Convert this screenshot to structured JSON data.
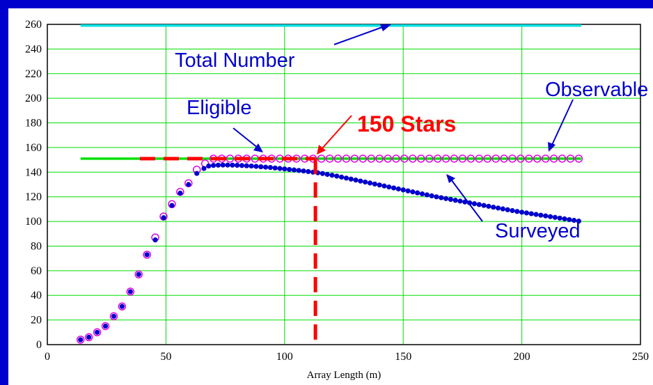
{
  "chart_data": {
    "type": "scatter",
    "xlabel": "Array Length (m)",
    "ylabel": "",
    "xlim": [
      0,
      250
    ],
    "ylim": [
      0,
      260
    ],
    "x_ticks": [
      0,
      50,
      100,
      150,
      200,
      250
    ],
    "y_ticks": [
      0,
      20,
      40,
      60,
      80,
      100,
      120,
      140,
      160,
      180,
      200,
      220,
      240,
      260
    ],
    "grid": true,
    "series": [
      {
        "name": "Total Number",
        "style": "line",
        "color": "#00e0e0",
        "x": [
          14,
          225
        ],
        "y": [
          259,
          259
        ]
      },
      {
        "name": "Eligible",
        "style": "line",
        "color": "#00e000",
        "x": [
          14,
          225
        ],
        "y": [
          151,
          151
        ]
      },
      {
        "name": "Observable",
        "style": "open-circles",
        "color": "#e000e0",
        "x": [
          14,
          17.5,
          21,
          24.5,
          28,
          31.5,
          35,
          38.5,
          42,
          45.5,
          49,
          52.5,
          56,
          59.5,
          63,
          66.5,
          70,
          73.5,
          77,
          80.5,
          84,
          87.5,
          91,
          94.5,
          98,
          101.5,
          105,
          108.5,
          112,
          115.5,
          119,
          122.5,
          126,
          129.5,
          133,
          136.5,
          140,
          143.5,
          147,
          150.5,
          154,
          157.5,
          161,
          164.5,
          168,
          171.5,
          175,
          178.5,
          182,
          185.5,
          189,
          192.5,
          196,
          199.5,
          203,
          206.5,
          210,
          213.5,
          217,
          220.5,
          224
        ],
        "y": [
          4,
          6,
          10,
          15,
          23,
          31,
          43,
          57,
          73,
          87,
          104,
          114,
          124,
          131,
          142,
          147,
          151,
          151,
          151,
          151,
          151,
          151,
          151,
          151,
          151,
          151,
          151,
          151,
          151,
          151,
          151,
          151,
          151,
          151,
          151,
          151,
          151,
          151,
          151,
          151,
          151,
          151,
          151,
          151,
          151,
          151,
          151,
          151,
          151,
          151,
          151,
          151,
          151,
          151,
          151,
          151,
          151,
          151,
          151,
          151,
          151
        ]
      },
      {
        "name": "Surveyed",
        "style": "dots",
        "color": "#0000cc",
        "x": [
          14,
          17.5,
          21,
          24.5,
          28,
          31.5,
          35,
          38.5,
          42,
          45.5,
          49,
          52.5,
          56,
          59.5,
          63,
          66,
          68,
          70,
          72,
          74,
          76,
          78,
          80,
          82,
          84,
          86,
          88,
          90,
          92,
          94,
          96,
          98,
          100,
          102,
          104,
          106,
          108,
          110,
          112,
          114,
          116,
          118,
          120,
          122,
          124,
          126,
          128,
          130,
          132,
          134,
          136,
          138,
          140,
          142,
          144,
          146,
          148,
          150,
          152,
          154,
          156,
          158,
          160,
          162,
          164,
          166,
          168,
          170,
          172,
          174,
          176,
          178,
          180,
          182,
          184,
          186,
          188,
          190,
          192,
          194,
          196,
          198,
          200,
          202,
          204,
          206,
          208,
          210,
          212,
          214,
          216,
          218,
          220,
          222,
          224
        ],
        "y": [
          4,
          6,
          10,
          15,
          23,
          31,
          43,
          57,
          73,
          85,
          103,
          113,
          123,
          130,
          139,
          143,
          145,
          145.5,
          145.7,
          145.8,
          145.8,
          145.7,
          145.6,
          145.4,
          145.2,
          145,
          144.7,
          144.4,
          144.1,
          143.8,
          143.4,
          143,
          142.6,
          142.2,
          141.8,
          141.4,
          141,
          140.5,
          140,
          139.5,
          138.9,
          138.2,
          137.5,
          136.8,
          136,
          135.2,
          134.4,
          133.6,
          132.8,
          132,
          131.2,
          130.4,
          129.6,
          128.8,
          128,
          127.2,
          126.4,
          125.6,
          124.8,
          124,
          123.2,
          122.4,
          121.6,
          120.8,
          120,
          119.3,
          118.6,
          117.9,
          117.2,
          116.5,
          115.8,
          115.1,
          114.4,
          113.7,
          113,
          112.3,
          111.6,
          110.9,
          110.2,
          109.5,
          108.8,
          108.1,
          107.5,
          106.9,
          106.3,
          105.7,
          105.1,
          104.5,
          103.9,
          103.3,
          102.7,
          102.1,
          101.5,
          100.9,
          100.3
        ]
      },
      {
        "name": "150 Stars",
        "style": "dashed-line",
        "color": "#ff0000",
        "x": [
          39,
          113
        ],
        "y": [
          151,
          151
        ]
      },
      {
        "name": "150 Stars (vertical)",
        "style": "dashed-line",
        "color": "#ff0000",
        "x": [
          113,
          113
        ],
        "y": [
          151,
          0
        ]
      }
    ],
    "annotations": [
      {
        "text": "Total Number",
        "color": "#0000cc"
      },
      {
        "text": "Eligible",
        "color": "#0000cc"
      },
      {
        "text": "150 Stars",
        "color": "#ff0000"
      },
      {
        "text": "Observable",
        "color": "#0000cc"
      },
      {
        "text": "Surveyed",
        "color": "#0000cc"
      }
    ]
  }
}
